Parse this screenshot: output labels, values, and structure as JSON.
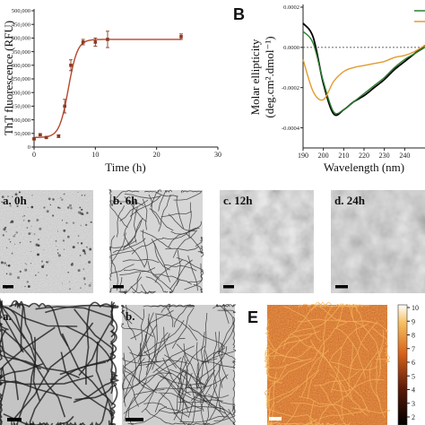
{
  "panels": {
    "a_chart": {
      "ylabel": "ThT fluorescence (RFU)",
      "xlabel": "Time (h)"
    },
    "b_chart": {
      "letter": "B",
      "ylabel": "Molar ellipticity",
      "ylabel_units": "(deg.cm².dmol⁻¹)",
      "xlabel": "Wavelength (nm)"
    },
    "micrographs_row1": [
      {
        "label": "a. 0h"
      },
      {
        "label": "b. 6h"
      },
      {
        "label": "c. 12h"
      },
      {
        "label": "d. 24h"
      }
    ],
    "micrographs_row2": [
      {
        "label": "a."
      },
      {
        "label": "b."
      }
    ],
    "afm": {
      "letter": "E",
      "colorbar_ticks": [
        "10",
        "9",
        "8",
        "7",
        "6",
        "5",
        "4",
        "3",
        "2"
      ]
    }
  },
  "chart_data": [
    {
      "type": "scatter",
      "title": "",
      "xlabel": "Time (h)",
      "ylabel": "ThT fluorescence (RFU)",
      "xlim": [
        0,
        30
      ],
      "ylim": [
        0,
        500000
      ],
      "xticks": [
        "0",
        "10",
        "20",
        "30"
      ],
      "yticks": [
        "0",
        "50,000",
        "100,000",
        "150,000",
        "200,000",
        "250,000",
        "300,000",
        "350,000",
        "400,000",
        "450,000",
        "500,000"
      ],
      "points": [
        {
          "x": 0,
          "y": 30000,
          "err": 3000
        },
        {
          "x": 1,
          "y": 45000,
          "err": 4000
        },
        {
          "x": 2,
          "y": 35000,
          "err": 3000
        },
        {
          "x": 4,
          "y": 40000,
          "err": 5000
        },
        {
          "x": 5,
          "y": 150000,
          "err": 25000
        },
        {
          "x": 6,
          "y": 300000,
          "err": 20000
        },
        {
          "x": 8,
          "y": 385000,
          "err": 10000
        },
        {
          "x": 10,
          "y": 385000,
          "err": 15000
        },
        {
          "x": 12,
          "y": 395000,
          "err": 30000
        },
        {
          "x": 24,
          "y": 405000,
          "err": 10000
        }
      ],
      "fit_color": "#b5472e",
      "marker_color": "#8a3a22",
      "grid": false
    },
    {
      "type": "line",
      "title": "",
      "xlabel": "Wavelength (nm)",
      "ylabel": "Molar ellipticity (deg.cm².dmol⁻¹)",
      "xlim": [
        190,
        250
      ],
      "ylim": [
        -0.0005,
        0.0002
      ],
      "xticks": [
        "190",
        "200",
        "210",
        "220",
        "230",
        "240"
      ],
      "yticks": [
        "0.0002",
        "0.0000",
        "-0.0002",
        "-0.0004"
      ],
      "x": [
        190,
        195,
        200,
        205,
        210,
        215,
        220,
        225,
        230,
        235,
        240,
        245,
        250
      ],
      "series": [
        {
          "color": "#000000",
          "values": [
            0.00012,
            5e-05,
            -0.00018,
            -0.00033,
            -0.00031,
            -0.00027,
            -0.00024,
            -0.0002,
            -0.00016,
            -0.00011,
            -7e-05,
            -3e-05,
            1e-05
          ]
        },
        {
          "color": "#2e7d32",
          "values": [
            8e-05,
            2e-05,
            -0.00017,
            -0.00032,
            -0.00031,
            -0.00027,
            -0.00023,
            -0.00019,
            -0.00015,
            -0.0001,
            -6e-05,
            -3e-05,
            0.0
          ]
        },
        {
          "color": "#e39b2f",
          "values": [
            -6e-05,
            -0.00022,
            -0.00026,
            -0.00017,
            -0.00012,
            -0.0001,
            -9e-05,
            -8e-05,
            -7e-05,
            -5e-05,
            -4e-05,
            -2e-05,
            1e-05
          ]
        }
      ],
      "grid": false
    }
  ]
}
